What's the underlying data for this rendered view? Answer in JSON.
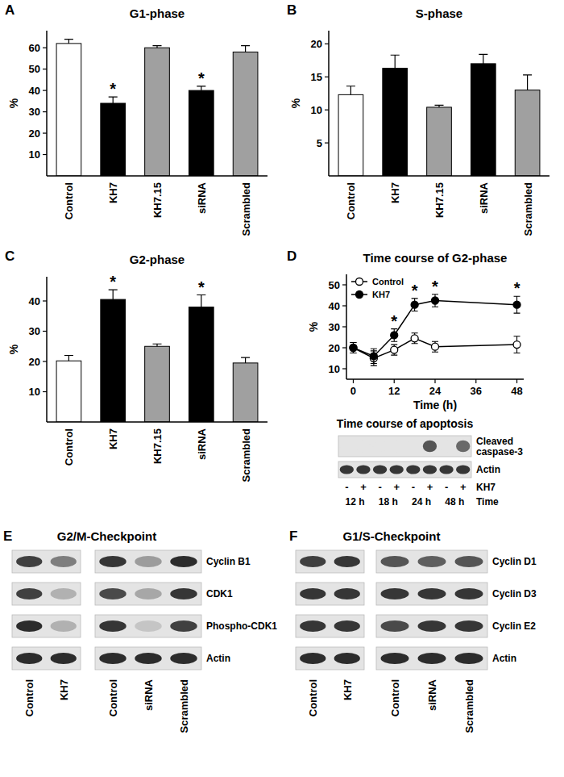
{
  "chart_data": [
    {
      "panel": "A",
      "type": "bar",
      "title": "G1-phase",
      "ylabel": "%",
      "categories": [
        "Control",
        "KH7",
        "KH7.15",
        "siRNA",
        "Scrambled"
      ],
      "values": [
        62,
        34,
        60,
        40,
        58
      ],
      "errors": [
        2,
        3,
        1,
        2,
        3
      ],
      "significance": [
        null,
        "*",
        null,
        "*",
        null
      ],
      "colors": [
        "#ffffff",
        "#000000",
        "#a0a0a0",
        "#000000",
        "#a0a0a0"
      ],
      "ylim": [
        0,
        68
      ],
      "yticks": [
        10,
        20,
        30,
        40,
        50,
        60
      ]
    },
    {
      "panel": "B",
      "type": "bar",
      "title": "S-phase",
      "ylabel": "%",
      "categories": [
        "Control",
        "KH7",
        "KH7.15",
        "siRNA",
        "Scrambled"
      ],
      "values": [
        12.3,
        16.3,
        10.4,
        17,
        13
      ],
      "errors": [
        1.3,
        2,
        0.3,
        1.4,
        2.3
      ],
      "colors": [
        "#ffffff",
        "#000000",
        "#a0a0a0",
        "#000000",
        "#a0a0a0"
      ],
      "ylim": [
        0,
        22
      ],
      "yticks": [
        5,
        10,
        15,
        20
      ]
    },
    {
      "panel": "C",
      "type": "bar",
      "title": "G2-phase",
      "ylabel": "%",
      "categories": [
        "Control",
        "KH7",
        "KH7.15",
        "siRNA",
        "Scrambled"
      ],
      "values": [
        20.2,
        40.5,
        25,
        38,
        19.5
      ],
      "errors": [
        1.8,
        3.2,
        0.8,
        4,
        1.8
      ],
      "significance": [
        null,
        "*",
        null,
        "*",
        null
      ],
      "colors": [
        "#ffffff",
        "#000000",
        "#a0a0a0",
        "#000000",
        "#a0a0a0"
      ],
      "ylim": [
        0,
        48
      ],
      "yticks": [
        10,
        20,
        30,
        40
      ]
    },
    {
      "panel": "D",
      "type": "line",
      "title": "Time course of G2-phase",
      "xlabel": "Time (h)",
      "ylabel": "%",
      "x": [
        0,
        6,
        12,
        18,
        24,
        48
      ],
      "series": [
        {
          "name": "Control",
          "color": "#000000",
          "marker": "open-circle",
          "values": [
            20,
            15,
            19,
            24.5,
            20.5,
            21.5
          ],
          "errors": [
            2.5,
            3.5,
            2.5,
            2.5,
            2.5,
            4
          ]
        },
        {
          "name": "KH7",
          "color": "#000000",
          "marker": "filled-circle",
          "values": [
            20,
            16,
            26,
            40.5,
            42.5,
            40.5
          ],
          "errors": [
            2.5,
            3.5,
            3,
            3,
            3,
            4
          ],
          "significance": [
            null,
            null,
            "*",
            "*",
            "*",
            "*"
          ]
        }
      ],
      "xlim": [
        -2,
        50
      ],
      "xticks": [
        0,
        12,
        24,
        36,
        48
      ],
      "ylim": [
        5,
        55
      ],
      "yticks": [
        10,
        20,
        30,
        40,
        50
      ],
      "legend": "upper left"
    }
  ],
  "apoptosis_blot": {
    "title": "Time course of apoptosis",
    "rows": [
      {
        "label": "Cleaved caspase-3",
        "intensity": [
          0,
          0,
          0,
          0,
          0,
          0.7,
          0,
          0.6
        ]
      },
      {
        "label": "Actin",
        "intensity": [
          0.85,
          0.85,
          0.85,
          0.85,
          0.85,
          0.85,
          0.85,
          0.85
        ]
      }
    ],
    "treatment": [
      "-",
      "+",
      "-",
      "+",
      "-",
      "+",
      "-",
      "+"
    ],
    "treatment_label": "KH7",
    "times": [
      "12 h",
      "18 h",
      "24 h",
      "48 h"
    ],
    "time_label": "Time"
  },
  "checkpoint_panels": [
    {
      "panel": "E",
      "title": "G2/M-Checkpoint",
      "row_labels": [
        "Cyclin B1",
        "CDK1",
        "Phospho-CDK1",
        "Actin"
      ],
      "blots": [
        {
          "lanes": [
            "Control",
            "KH7"
          ],
          "intensity": [
            [
              0.8,
              0.5
            ],
            [
              0.8,
              0.25
            ],
            [
              0.9,
              0.25
            ],
            [
              0.9,
              0.9
            ]
          ]
        },
        {
          "lanes": [
            "Control",
            "siRNA",
            "Scrambled"
          ],
          "intensity": [
            [
              0.85,
              0.35,
              0.9
            ],
            [
              0.75,
              0.3,
              0.85
            ],
            [
              0.85,
              0.15,
              0.8
            ],
            [
              0.9,
              0.9,
              0.9
            ]
          ]
        }
      ]
    },
    {
      "panel": "F",
      "title": "G1/S-Checkpoint",
      "row_labels": [
        "Cyclin D1",
        "Cyclin D3",
        "Cyclin E2",
        "Actin"
      ],
      "blots": [
        {
          "lanes": [
            "Control",
            "KH7"
          ],
          "intensity": [
            [
              0.8,
              0.85
            ],
            [
              0.85,
              0.85
            ],
            [
              0.85,
              0.85
            ],
            [
              0.9,
              0.9
            ]
          ]
        },
        {
          "lanes": [
            "Control",
            "siRNA",
            "Scrambled"
          ],
          "intensity": [
            [
              0.7,
              0.65,
              0.7
            ],
            [
              0.85,
              0.85,
              0.85
            ],
            [
              0.75,
              0.85,
              0.85
            ],
            [
              0.9,
              0.9,
              0.9
            ]
          ]
        }
      ]
    }
  ]
}
